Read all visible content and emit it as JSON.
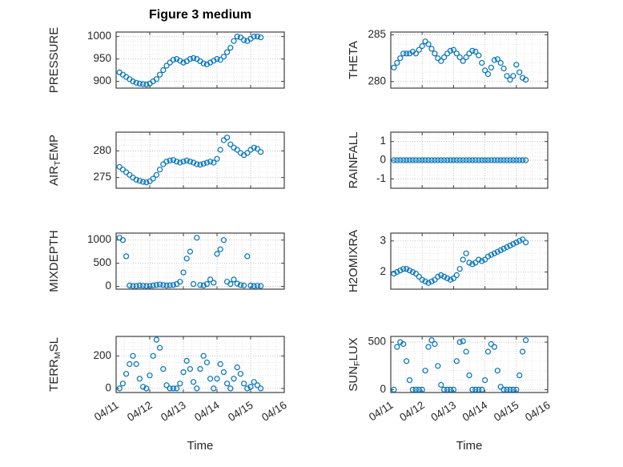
{
  "title": "Figure 3 medium",
  "xlabel": "Time",
  "colors": {
    "marker": "#0072BD",
    "axis": "#3f3f3f",
    "grid_major": "#c4c4c4",
    "grid_minor": "#e6e6e6",
    "text": "#262626"
  },
  "xticks": {
    "values": [
      0,
      1,
      2,
      3,
      4,
      5
    ],
    "labels": [
      "04/11",
      "04/12",
      "04/13",
      "04/14",
      "04/15",
      "04/16"
    ]
  },
  "x_days": [
    0.1,
    0.2,
    0.3,
    0.4,
    0.5,
    0.6,
    0.7,
    0.8,
    0.9,
    1.0,
    1.1,
    1.2,
    1.3,
    1.4,
    1.5,
    1.6,
    1.7,
    1.8,
    1.9,
    2.0,
    2.1,
    2.2,
    2.3,
    2.4,
    2.5,
    2.6,
    2.7,
    2.8,
    2.9,
    3.0,
    3.1,
    3.2,
    3.3,
    3.4,
    3.5,
    3.6,
    3.7,
    3.8,
    3.9,
    4.0,
    4.1,
    4.2,
    4.3
  ],
  "chart_data": [
    {
      "name": "pressure",
      "type": "scatter",
      "row": 0,
      "col": 0,
      "ylabel": "PRESSURE",
      "ylabel_parts": [
        [
          "PRESSURE",
          false
        ]
      ],
      "ylim": [
        885,
        1010
      ],
      "yticks": [
        900,
        950,
        1000
      ],
      "xlim": [
        0,
        5
      ],
      "show_xticklabels": false,
      "y": [
        920,
        915,
        910,
        905,
        900,
        897,
        895,
        894,
        893,
        895,
        900,
        905,
        915,
        925,
        935,
        942,
        948,
        950,
        946,
        942,
        945,
        950,
        952,
        950,
        945,
        940,
        938,
        942,
        946,
        950,
        948,
        955,
        965,
        975,
        990,
        1000,
        998,
        992,
        990,
        995,
        1000,
        1000,
        998
      ]
    },
    {
      "name": "theta",
      "type": "scatter",
      "row": 0,
      "col": 1,
      "ylabel": "THETA",
      "ylabel_parts": [
        [
          "THETA",
          false
        ]
      ],
      "ylim": [
        279.3,
        285.3
      ],
      "yticks": [
        280,
        285
      ],
      "xlim": [
        0,
        5
      ],
      "show_xticklabels": false,
      "y": [
        281.5,
        282,
        282.5,
        283,
        283,
        283,
        283.2,
        283,
        283.4,
        283.8,
        284.3,
        284,
        283.5,
        283,
        282.5,
        282.2,
        282.6,
        283,
        283.3,
        283.4,
        283,
        282.6,
        282.2,
        282.6,
        283,
        283.3,
        283.2,
        282.8,
        282,
        281.2,
        280.8,
        281.5,
        282.3,
        282.4,
        282,
        281.4,
        280.6,
        280.2,
        280.6,
        281.8,
        281,
        280.4,
        280.2
      ]
    },
    {
      "name": "air-temp",
      "type": "scatter",
      "row": 1,
      "col": 0,
      "ylabel": "AIR_TEMP",
      "ylabel_parts": [
        [
          "AIR",
          false
        ],
        [
          "T",
          true
        ],
        [
          "EMP",
          false
        ]
      ],
      "ylim": [
        273,
        283.5
      ],
      "yticks": [
        275,
        280
      ],
      "xlim": [
        0,
        5
      ],
      "show_xticklabels": false,
      "y": [
        277,
        276.5,
        276,
        275.5,
        275,
        274.6,
        274.4,
        274.2,
        274.1,
        274.3,
        274.8,
        275.5,
        276.5,
        277.5,
        278,
        278.2,
        278.3,
        278,
        277.8,
        278,
        278.2,
        278,
        277.8,
        277.5,
        277.4,
        277.6,
        277.8,
        278,
        277.8,
        278.5,
        280.2,
        282,
        282.5,
        281.2,
        280.6,
        280.2,
        279.6,
        279.2,
        279.6,
        280.2,
        280.6,
        280.4,
        279.8
      ]
    },
    {
      "name": "rainfall",
      "type": "scatter",
      "row": 1,
      "col": 1,
      "ylabel": "RAINFALL",
      "ylabel_parts": [
        [
          "RAINFALL",
          false
        ]
      ],
      "ylim": [
        -1.5,
        1.5
      ],
      "yticks": [
        -1,
        0,
        1
      ],
      "xlim": [
        0,
        5
      ],
      "show_xticklabels": false,
      "y": [
        0,
        0,
        0,
        0,
        0,
        0,
        0,
        0,
        0,
        0,
        0,
        0,
        0,
        0,
        0,
        0,
        0,
        0,
        0,
        0,
        0,
        0,
        0,
        0,
        0,
        0,
        0,
        0,
        0,
        0,
        0,
        0,
        0,
        0,
        0,
        0,
        0,
        0,
        0,
        0,
        0,
        0,
        0
      ]
    },
    {
      "name": "mixdepth",
      "type": "scatter",
      "row": 2,
      "col": 0,
      "ylabel": "MIXDEPTH",
      "ylabel_parts": [
        [
          "MIXDEPTH",
          false
        ]
      ],
      "ylim": [
        -60,
        1150
      ],
      "yticks": [
        0,
        500,
        1000
      ],
      "xlim": [
        0,
        5
      ],
      "show_xticklabels": false,
      "y": [
        1050,
        1000,
        650,
        20,
        10,
        10,
        20,
        15,
        10,
        10,
        20,
        30,
        40,
        30,
        20,
        25,
        30,
        50,
        100,
        300,
        600,
        750,
        50,
        1050,
        30,
        20,
        50,
        150,
        80,
        700,
        800,
        1000,
        100,
        50,
        150,
        60,
        30,
        20,
        650,
        20,
        10,
        15,
        10
      ]
    },
    {
      "name": "h2omixra",
      "type": "scatter",
      "row": 2,
      "col": 1,
      "ylabel": "H2OMIXRA",
      "ylabel_parts": [
        [
          "H2OMIXRA",
          false
        ]
      ],
      "ylim": [
        1.45,
        3.25
      ],
      "yticks": [
        2,
        3
      ],
      "xlim": [
        0,
        5
      ],
      "show_xticklabels": false,
      "y": [
        1.95,
        2,
        2.05,
        2.1,
        2.1,
        2.05,
        2,
        1.95,
        1.85,
        1.75,
        1.7,
        1.65,
        1.7,
        1.75,
        1.85,
        1.9,
        1.85,
        1.8,
        1.75,
        1.8,
        1.9,
        2.1,
        2.4,
        2.6,
        2.3,
        2.25,
        2.3,
        2.4,
        2.35,
        2.4,
        2.5,
        2.55,
        2.6,
        2.65,
        2.7,
        2.75,
        2.8,
        2.85,
        2.9,
        2.95,
        3,
        3.05,
        2.95
      ]
    },
    {
      "name": "terr-msl",
      "type": "scatter",
      "row": 3,
      "col": 0,
      "ylabel": "TERR_MSL",
      "ylabel_parts": [
        [
          "TERR",
          false
        ],
        [
          "M",
          true
        ],
        [
          "SL",
          false
        ]
      ],
      "ylim": [
        -25,
        320
      ],
      "yticks": [
        0,
        200
      ],
      "xlim": [
        0,
        5
      ],
      "show_xticklabels": true,
      "y": [
        0,
        30,
        90,
        150,
        200,
        150,
        60,
        10,
        0,
        80,
        200,
        300,
        250,
        120,
        20,
        0,
        0,
        0,
        30,
        100,
        170,
        120,
        40,
        0,
        120,
        200,
        160,
        60,
        0,
        60,
        150,
        100,
        30,
        0,
        60,
        130,
        90,
        30,
        0,
        10,
        40,
        20,
        0
      ]
    },
    {
      "name": "sun-flux",
      "type": "scatter",
      "row": 3,
      "col": 1,
      "ylabel": "SUN_FLUX",
      "ylabel_parts": [
        [
          "SUN",
          false
        ],
        [
          "F",
          true
        ],
        [
          "LUX",
          false
        ]
      ],
      "ylim": [
        -30,
        560
      ],
      "yticks": [
        0,
        500
      ],
      "xlim": [
        0,
        5
      ],
      "show_xticklabels": true,
      "y": [
        0,
        450,
        500,
        480,
        300,
        100,
        0,
        0,
        0,
        0,
        200,
        450,
        520,
        480,
        250,
        50,
        0,
        0,
        0,
        0,
        300,
        500,
        510,
        400,
        150,
        0,
        0,
        0,
        0,
        100,
        400,
        480,
        450,
        200,
        30,
        0,
        0,
        0,
        0,
        0,
        150,
        400,
        520
      ]
    }
  ]
}
